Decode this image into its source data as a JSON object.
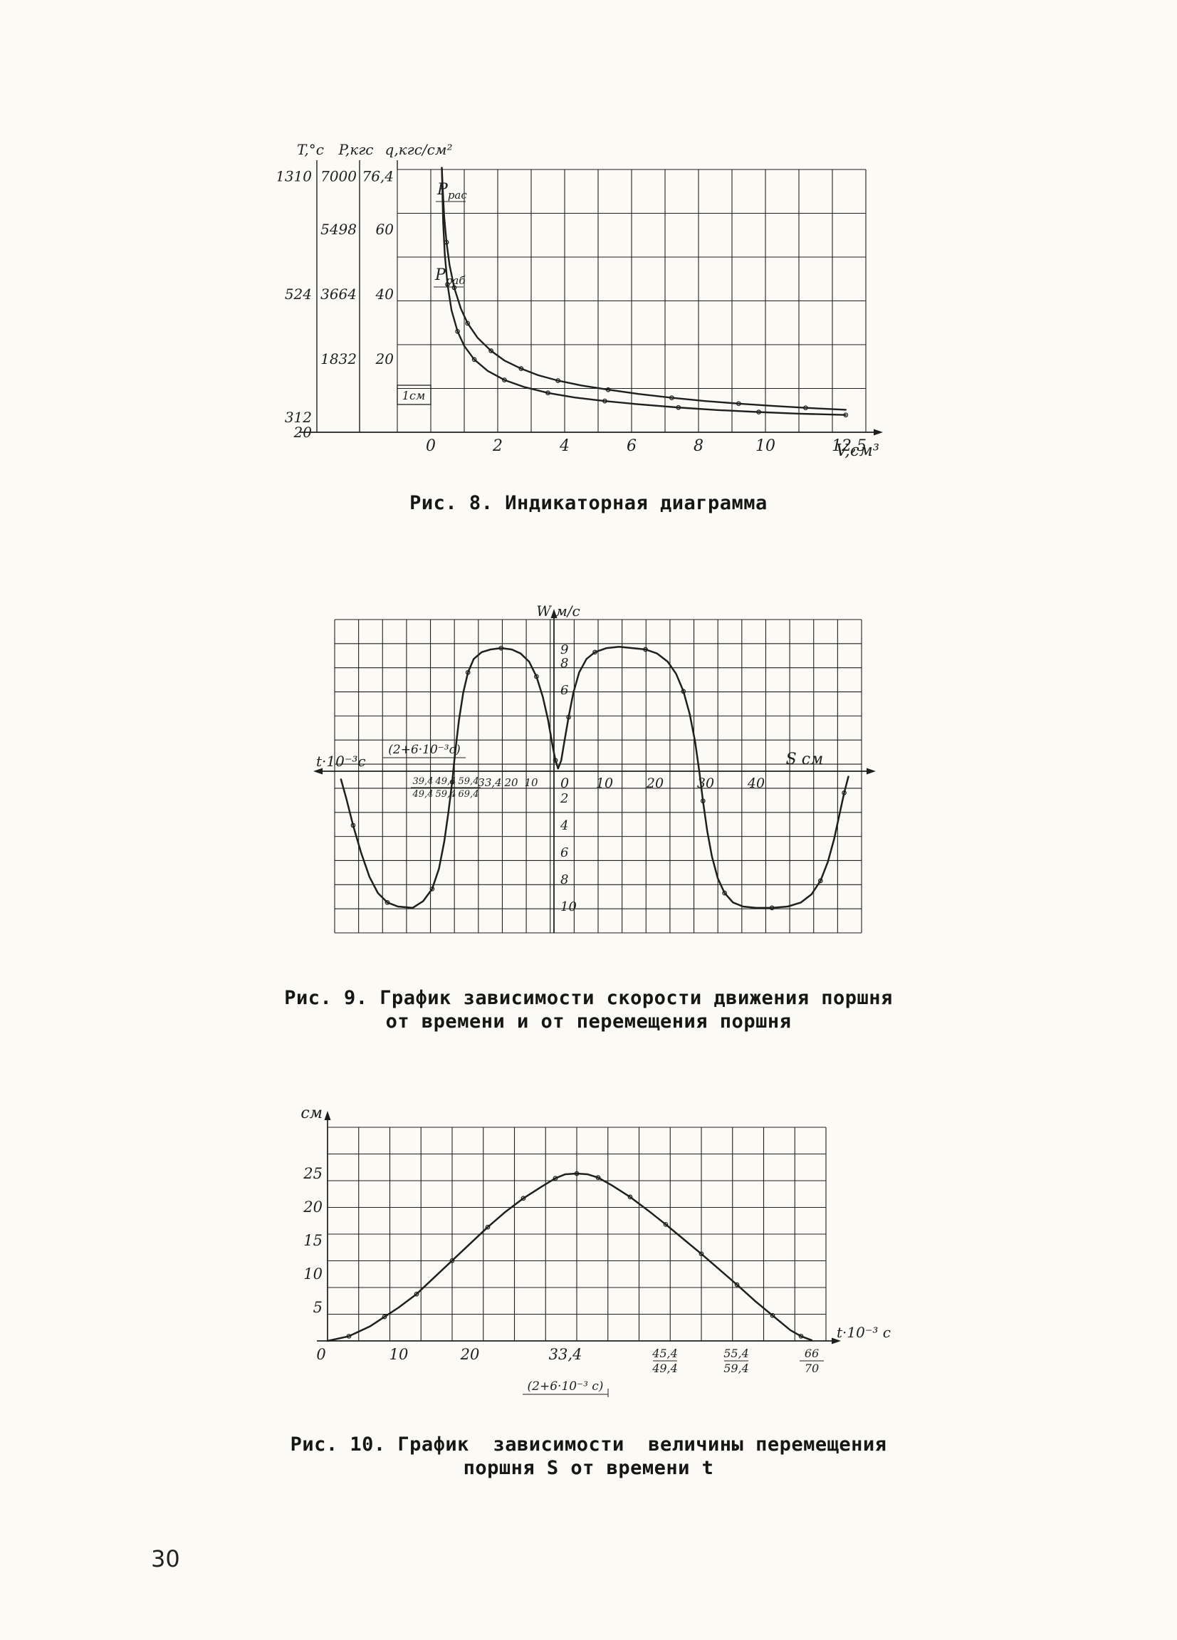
{
  "page": {
    "number": "30"
  },
  "colors": {
    "ink": "#1f1f1f",
    "paper": "#fbfaf5"
  },
  "chart_data": [
    {
      "id": "fig8",
      "type": "line",
      "caption": "Рис. 8. Индикаторная диаграмма",
      "x_axis": {
        "label": "V,см³",
        "ticks": [
          {
            "v": 0,
            "label": "0"
          },
          {
            "v": 2,
            "label": "2"
          },
          {
            "v": 4,
            "label": "4"
          },
          {
            "v": 6,
            "label": "6"
          },
          {
            "v": 8,
            "label": "8"
          },
          {
            "v": 10,
            "label": "10"
          },
          {
            "v": 12.5,
            "label": "12,5"
          }
        ]
      },
      "y_axes": [
        {
          "label": "T,°c",
          "ticks": [
            {
              "label": "1310",
              "q": 76.4
            },
            {
              "label": "524",
              "q": 40
            },
            {
              "label": "312",
              "q": 2
            },
            {
              "label": "20",
              "q": -2.6
            }
          ]
        },
        {
          "label": "P,кгс",
          "ticks": [
            {
              "label": "7000",
              "q": 76.4
            },
            {
              "label": "5498",
              "q": 60
            },
            {
              "label": "3664",
              "q": 40
            },
            {
              "label": "1832",
              "q": 20
            }
          ]
        },
        {
          "label": "q,кгс/см²",
          "ticks": [
            {
              "label": "76,4",
              "q": 76.4
            },
            {
              "label": "60",
              "q": 60
            },
            {
              "label": "40",
              "q": 40
            },
            {
              "label": "20",
              "q": 20
            }
          ]
        }
      ],
      "annotations": {
        "upper_curve": "Pрас",
        "lower_curve": "Pраб",
        "scale_mark": "1см"
      },
      "series": [
        {
          "name": "Pрас",
          "points": [
            [
              0.33,
              79
            ],
            [
              0.36,
              72
            ],
            [
              0.4,
              64
            ],
            [
              0.47,
              56
            ],
            [
              0.56,
              49
            ],
            [
              0.7,
              42
            ],
            [
              0.9,
              35.5
            ],
            [
              1.1,
              31
            ],
            [
              1.4,
              26.5
            ],
            [
              1.8,
              22.5
            ],
            [
              2.2,
              19.5
            ],
            [
              2.7,
              17
            ],
            [
              3.2,
              15
            ],
            [
              3.8,
              13.3
            ],
            [
              4.5,
              11.8
            ],
            [
              5.3,
              10.5
            ],
            [
              6.2,
              9.2
            ],
            [
              7.2,
              8
            ],
            [
              8.2,
              7
            ],
            [
              9.2,
              6.2
            ],
            [
              10.2,
              5.5
            ],
            [
              11.2,
              4.9
            ],
            [
              12.4,
              4.3
            ]
          ]
        },
        {
          "name": "Pраб",
          "points": [
            [
              0.33,
              79
            ],
            [
              0.37,
              62
            ],
            [
              0.42,
              52
            ],
            [
              0.5,
              43
            ],
            [
              0.62,
              35
            ],
            [
              0.8,
              28.5
            ],
            [
              1,
              24
            ],
            [
              1.3,
              19.8
            ],
            [
              1.7,
              16.3
            ],
            [
              2.2,
              13.5
            ],
            [
              2.8,
              11.3
            ],
            [
              3.5,
              9.5
            ],
            [
              4.3,
              8.1
            ],
            [
              5.2,
              7
            ],
            [
              6.2,
              6
            ],
            [
              7.4,
              5
            ],
            [
              8.6,
              4.2
            ],
            [
              9.8,
              3.6
            ],
            [
              11,
              3.1
            ],
            [
              12.4,
              2.7
            ]
          ]
        }
      ]
    },
    {
      "id": "fig9",
      "type": "line",
      "caption_lines": [
        "Рис. 9. График зависимости скорости движения поршня",
        "от времени и от перемещения поршня"
      ],
      "y_axis": {
        "label": "W м/с",
        "ticks_positive": [
          "9",
          "8",
          "6"
        ],
        "ticks_negative": [
          "2",
          "4",
          "6",
          "8",
          "10"
        ]
      },
      "x_axis_right": {
        "label": "S см",
        "ticks": [
          "10",
          "20",
          "30",
          "40"
        ]
      },
      "x_axis_left": {
        "label": "t·10⁻³с",
        "annotation": "(2+6·10⁻³с)",
        "origin_label": "0",
        "ticks": [
          "10",
          "20",
          "33,4"
        ],
        "fraction_ticks": [
          {
            "top": "39,4",
            "bottom": "49,4"
          },
          {
            "top": "49,4",
            "bottom": "59,4"
          },
          {
            "top": "59,4",
            "bottom": "69,4"
          }
        ]
      },
      "curve": [
        [
          0.012,
          -0.6
        ],
        [
          0.022,
          -2
        ],
        [
          0.035,
          -4
        ],
        [
          0.05,
          -6
        ],
        [
          0.066,
          -7.8
        ],
        [
          0.082,
          -9
        ],
        [
          0.1,
          -9.7
        ],
        [
          0.12,
          -10
        ],
        [
          0.148,
          -10.1
        ],
        [
          0.168,
          -9.6
        ],
        [
          0.185,
          -8.7
        ],
        [
          0.198,
          -7.2
        ],
        [
          0.208,
          -5.2
        ],
        [
          0.216,
          -3
        ],
        [
          0.223,
          -0.8
        ],
        [
          0.229,
          1.5
        ],
        [
          0.236,
          3.8
        ],
        [
          0.244,
          5.8
        ],
        [
          0.253,
          7.3
        ],
        [
          0.264,
          8.3
        ],
        [
          0.279,
          8.8
        ],
        [
          0.296,
          9
        ],
        [
          0.316,
          9.1
        ],
        [
          0.336,
          9
        ],
        [
          0.353,
          8.7
        ],
        [
          0.369,
          8.1
        ],
        [
          0.383,
          7
        ],
        [
          0.395,
          5.5
        ],
        [
          0.405,
          3.8
        ],
        [
          0.413,
          2
        ],
        [
          0.419,
          0.8
        ],
        [
          0.424,
          0.2
        ],
        [
          0.43,
          0.8
        ],
        [
          0.436,
          2.2
        ],
        [
          0.444,
          4
        ],
        [
          0.453,
          5.8
        ],
        [
          0.464,
          7.3
        ],
        [
          0.478,
          8.3
        ],
        [
          0.494,
          8.8
        ],
        [
          0.516,
          9.1
        ],
        [
          0.54,
          9.2
        ],
        [
          0.565,
          9.1
        ],
        [
          0.59,
          9
        ],
        [
          0.612,
          8.7
        ],
        [
          0.632,
          8.1
        ],
        [
          0.648,
          7.2
        ],
        [
          0.662,
          5.9
        ],
        [
          0.674,
          4.2
        ],
        [
          0.684,
          2.2
        ],
        [
          0.692,
          0
        ],
        [
          0.699,
          -2.2
        ],
        [
          0.707,
          -4.4
        ],
        [
          0.716,
          -6.3
        ],
        [
          0.727,
          -7.9
        ],
        [
          0.74,
          -9
        ],
        [
          0.756,
          -9.7
        ],
        [
          0.775,
          -10
        ],
        [
          0.8,
          -10.1
        ],
        [
          0.83,
          -10.1
        ],
        [
          0.86,
          -10
        ],
        [
          0.885,
          -9.7
        ],
        [
          0.905,
          -9.1
        ],
        [
          0.922,
          -8.1
        ],
        [
          0.936,
          -6.7
        ],
        [
          0.948,
          -5
        ],
        [
          0.958,
          -3.2
        ],
        [
          0.967,
          -1.6
        ],
        [
          0.975,
          -0.4
        ]
      ]
    },
    {
      "id": "fig10",
      "type": "line",
      "caption_lines": [
        "Рис. 10. График  зависимости  величины перемещения",
        "поршня S от времени t"
      ],
      "y_axis": {
        "label": "S см",
        "ticks": [
          {
            "v": 5,
            "label": "5"
          },
          {
            "v": 10,
            "label": "10"
          },
          {
            "v": 15,
            "label": "15"
          },
          {
            "v": 20,
            "label": "20"
          },
          {
            "v": 25,
            "label": "25"
          }
        ]
      },
      "x_axis": {
        "label": "t·10⁻³ с",
        "annotation": "(2+6·10⁻³ с)",
        "ticks": [
          {
            "v": 0,
            "label": "0"
          },
          {
            "v": 10,
            "label": "10"
          },
          {
            "v": 20,
            "label": "20"
          },
          {
            "v": 33.4,
            "label": "33,4"
          },
          {
            "v": 47.4,
            "top": "45,4",
            "bottom": "49,4"
          },
          {
            "v": 57.4,
            "top": "55,4",
            "bottom": "59,4"
          },
          {
            "v": 68,
            "top": "66",
            "bottom": "70"
          }
        ]
      },
      "curve": [
        [
          0,
          0
        ],
        [
          3,
          0.7
        ],
        [
          6,
          2.2
        ],
        [
          8,
          3.6
        ],
        [
          10,
          5
        ],
        [
          12.5,
          7
        ],
        [
          15,
          9.5
        ],
        [
          17.5,
          12
        ],
        [
          20,
          14.5
        ],
        [
          22.5,
          17
        ],
        [
          25,
          19.3
        ],
        [
          27.5,
          21.3
        ],
        [
          30,
          23
        ],
        [
          32,
          24.3
        ],
        [
          33.4,
          24.9
        ],
        [
          35,
          25
        ],
        [
          36.5,
          24.9
        ],
        [
          38,
          24.4
        ],
        [
          40,
          23.2
        ],
        [
          42.5,
          21.5
        ],
        [
          45,
          19.5
        ],
        [
          47.5,
          17.4
        ],
        [
          50,
          15.2
        ],
        [
          52.5,
          13
        ],
        [
          55,
          10.7
        ],
        [
          57.5,
          8.4
        ],
        [
          60,
          6
        ],
        [
          62.5,
          3.8
        ],
        [
          65,
          1.6
        ],
        [
          66.5,
          0.7
        ],
        [
          68,
          0.1
        ]
      ]
    }
  ]
}
